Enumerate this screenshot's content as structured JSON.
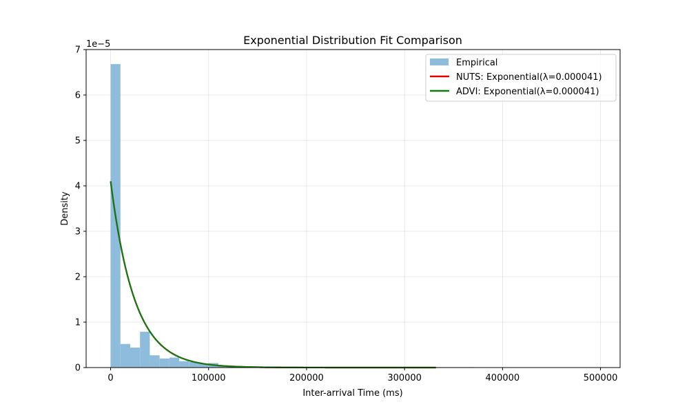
{
  "chart_data": {
    "type": "bar",
    "title": "Exponential Distribution Fit Comparison",
    "xlabel": "Inter-arrival Time (ms)",
    "ylabel": "Density",
    "y_offset_text": "1e−5",
    "y_scale": 1e-05,
    "xlim": [
      -25000,
      520000
    ],
    "ylim": [
      0,
      7
    ],
    "x_ticks": [
      0,
      100000,
      200000,
      300000,
      400000,
      500000
    ],
    "x_tick_labels": [
      "0",
      "100000",
      "200000",
      "300000",
      "400000",
      "500000"
    ],
    "y_ticks": [
      0,
      1,
      2,
      3,
      4,
      5,
      6,
      7
    ],
    "y_tick_labels": [
      "0",
      "1",
      "2",
      "3",
      "4",
      "5",
      "6",
      "7"
    ],
    "grid": true,
    "legend_position": "top-right",
    "histogram": {
      "name": "Empirical",
      "color": "#8dbcdc",
      "bin_width": 10000,
      "bins": [
        {
          "x0": 0,
          "value": 6.68
        },
        {
          "x0": 10000,
          "value": 0.52
        },
        {
          "x0": 20000,
          "value": 0.44
        },
        {
          "x0": 30000,
          "value": 0.79
        },
        {
          "x0": 40000,
          "value": 0.27
        },
        {
          "x0": 50000,
          "value": 0.2
        },
        {
          "x0": 60000,
          "value": 0.22
        },
        {
          "x0": 70000,
          "value": 0.14
        },
        {
          "x0": 80000,
          "value": 0.12
        },
        {
          "x0": 90000,
          "value": 0.08
        },
        {
          "x0": 100000,
          "value": 0.1
        },
        {
          "x0": 110000,
          "value": 0.04
        },
        {
          "x0": 120000,
          "value": 0.03
        },
        {
          "x0": 130000,
          "value": 0.03
        },
        {
          "x0": 140000,
          "value": 0.02
        },
        {
          "x0": 150000,
          "value": 0.02
        },
        {
          "x0": 160000,
          "value": 0.02
        },
        {
          "x0": 170000,
          "value": 0.01
        },
        {
          "x0": 180000,
          "value": 0.01
        },
        {
          "x0": 190000,
          "value": 0.01
        },
        {
          "x0": 200000,
          "value": 0.01
        },
        {
          "x0": 210000,
          "value": 0.01
        },
        {
          "x0": 220000,
          "value": 0.01
        },
        {
          "x0": 230000,
          "value": 0.01
        },
        {
          "x0": 240000,
          "value": 0.01
        },
        {
          "x0": 250000,
          "value": 0.01
        },
        {
          "x0": 260000,
          "value": 0.01
        },
        {
          "x0": 270000,
          "value": 0.01
        },
        {
          "x0": 280000,
          "value": 0.01
        },
        {
          "x0": 290000,
          "value": 0.01
        },
        {
          "x0": 300000,
          "value": 0.01
        },
        {
          "x0": 310000,
          "value": 0.01
        },
        {
          "x0": 320000,
          "value": 0.01
        },
        {
          "x0": 330000,
          "value": 0.01
        },
        {
          "x0": 340000,
          "value": 0.01
        },
        {
          "x0": 350000,
          "value": 0.01
        },
        {
          "x0": 360000,
          "value": 0.01
        }
      ]
    },
    "series": [
      {
        "name": "NUTS: Exponential(λ=0.000041)",
        "color": "#e00000",
        "lambda": 4.1e-05,
        "x_range": [
          0,
          332000
        ]
      },
      {
        "name": "ADVI: Exponential(λ=0.000041)",
        "color": "#137a13",
        "lambda": 4.1e-05,
        "x_range": [
          0,
          332000
        ]
      }
    ]
  }
}
